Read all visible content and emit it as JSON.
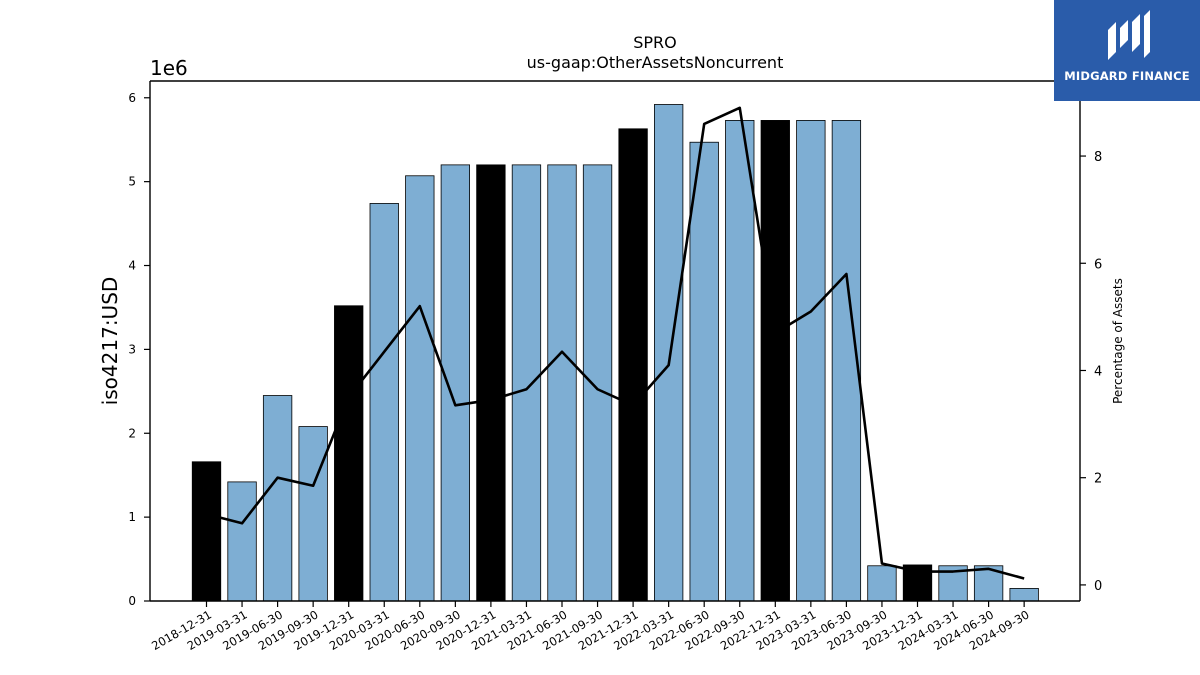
{
  "chart_data": {
    "type": "bar",
    "title": "SPRO",
    "subtitle": "us-gaap:OtherAssetsNoncurrent",
    "ylabel": "iso4217:USD",
    "y2label": "Percentage of Assets",
    "yexponent": "1e6",
    "ylim": [
      0,
      6200000
    ],
    "y2lim": [
      -0.3,
      9.4
    ],
    "yticks": [
      "0",
      "1",
      "2",
      "3",
      "4",
      "5",
      "6"
    ],
    "y2ticks": [
      "0",
      "2",
      "4",
      "6",
      "8"
    ],
    "categories": [
      "2018-12-31",
      "2019-03-31",
      "2019-06-30",
      "2019-09-30",
      "2019-12-31",
      "2020-03-31",
      "2020-06-30",
      "2020-09-30",
      "2020-12-31",
      "2021-03-31",
      "2021-06-30",
      "2021-09-30",
      "2021-12-31",
      "2022-03-31",
      "2022-06-30",
      "2022-09-30",
      "2022-12-31",
      "2023-03-31",
      "2023-06-30",
      "2023-09-30",
      "2023-12-31",
      "2024-03-31",
      "2024-06-30",
      "2024-09-30"
    ],
    "series": [
      {
        "type": "bar",
        "values": [
          1660000,
          1420000,
          2450000,
          2080000,
          3520000,
          4740000,
          5070000,
          5200000,
          5200000,
          5200000,
          5200000,
          5200000,
          5630000,
          5920000,
          5470000,
          5730000,
          5730000,
          5730000,
          5730000,
          420000,
          430000,
          420000,
          420000,
          150000
        ],
        "highlight": [
          true,
          false,
          false,
          false,
          true,
          false,
          false,
          false,
          true,
          false,
          false,
          false,
          true,
          false,
          false,
          false,
          true,
          false,
          false,
          false,
          true,
          false,
          false,
          false
        ]
      },
      {
        "type": "line",
        "axis": "right",
        "values": [
          1.32,
          1.15,
          2.0,
          1.85,
          3.5,
          4.35,
          5.2,
          3.35,
          3.45,
          3.65,
          4.35,
          3.65,
          3.35,
          4.1,
          8.6,
          8.9,
          4.7,
          5.1,
          5.8,
          0.4,
          0.25,
          0.25,
          0.3,
          0.12
        ]
      }
    ],
    "colors": {
      "bar": "#7eaed3",
      "bar_highlight": "#000000",
      "line": "#000000"
    },
    "grid": false
  },
  "logo": {
    "text": "MIDGARD FINANCE"
  }
}
